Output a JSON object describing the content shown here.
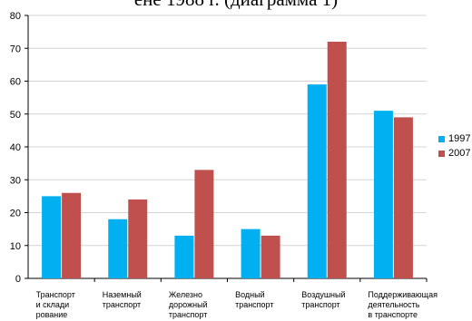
{
  "heading_fragment": "ене 1988 г. (диаграмма 1)",
  "chart_data": {
    "type": "bar",
    "categories": [
      [
        "Транспорт",
        "и склади",
        "рование"
      ],
      [
        "Наземный",
        "транспорт"
      ],
      [
        "Железно",
        "дорожный",
        "транспорт"
      ],
      [
        "Водный",
        "транспорт"
      ],
      [
        "Воздушный",
        "транспорт"
      ],
      [
        "Поддерживающая",
        "деятельность",
        "в транспорте"
      ]
    ],
    "series": [
      {
        "name": "1997",
        "color": "#00b0f0",
        "values": [
          25,
          18,
          13,
          15,
          59,
          51
        ]
      },
      {
        "name": "2007",
        "color": "#c0504d",
        "values": [
          26,
          24,
          33,
          13,
          72,
          49
        ]
      }
    ],
    "ylim": [
      0,
      80
    ],
    "yticks": [
      0,
      10,
      20,
      30,
      40,
      50,
      60,
      70,
      80
    ],
    "grid": true,
    "legend_position": "right",
    "title": "",
    "xlabel": "",
    "ylabel": ""
  }
}
